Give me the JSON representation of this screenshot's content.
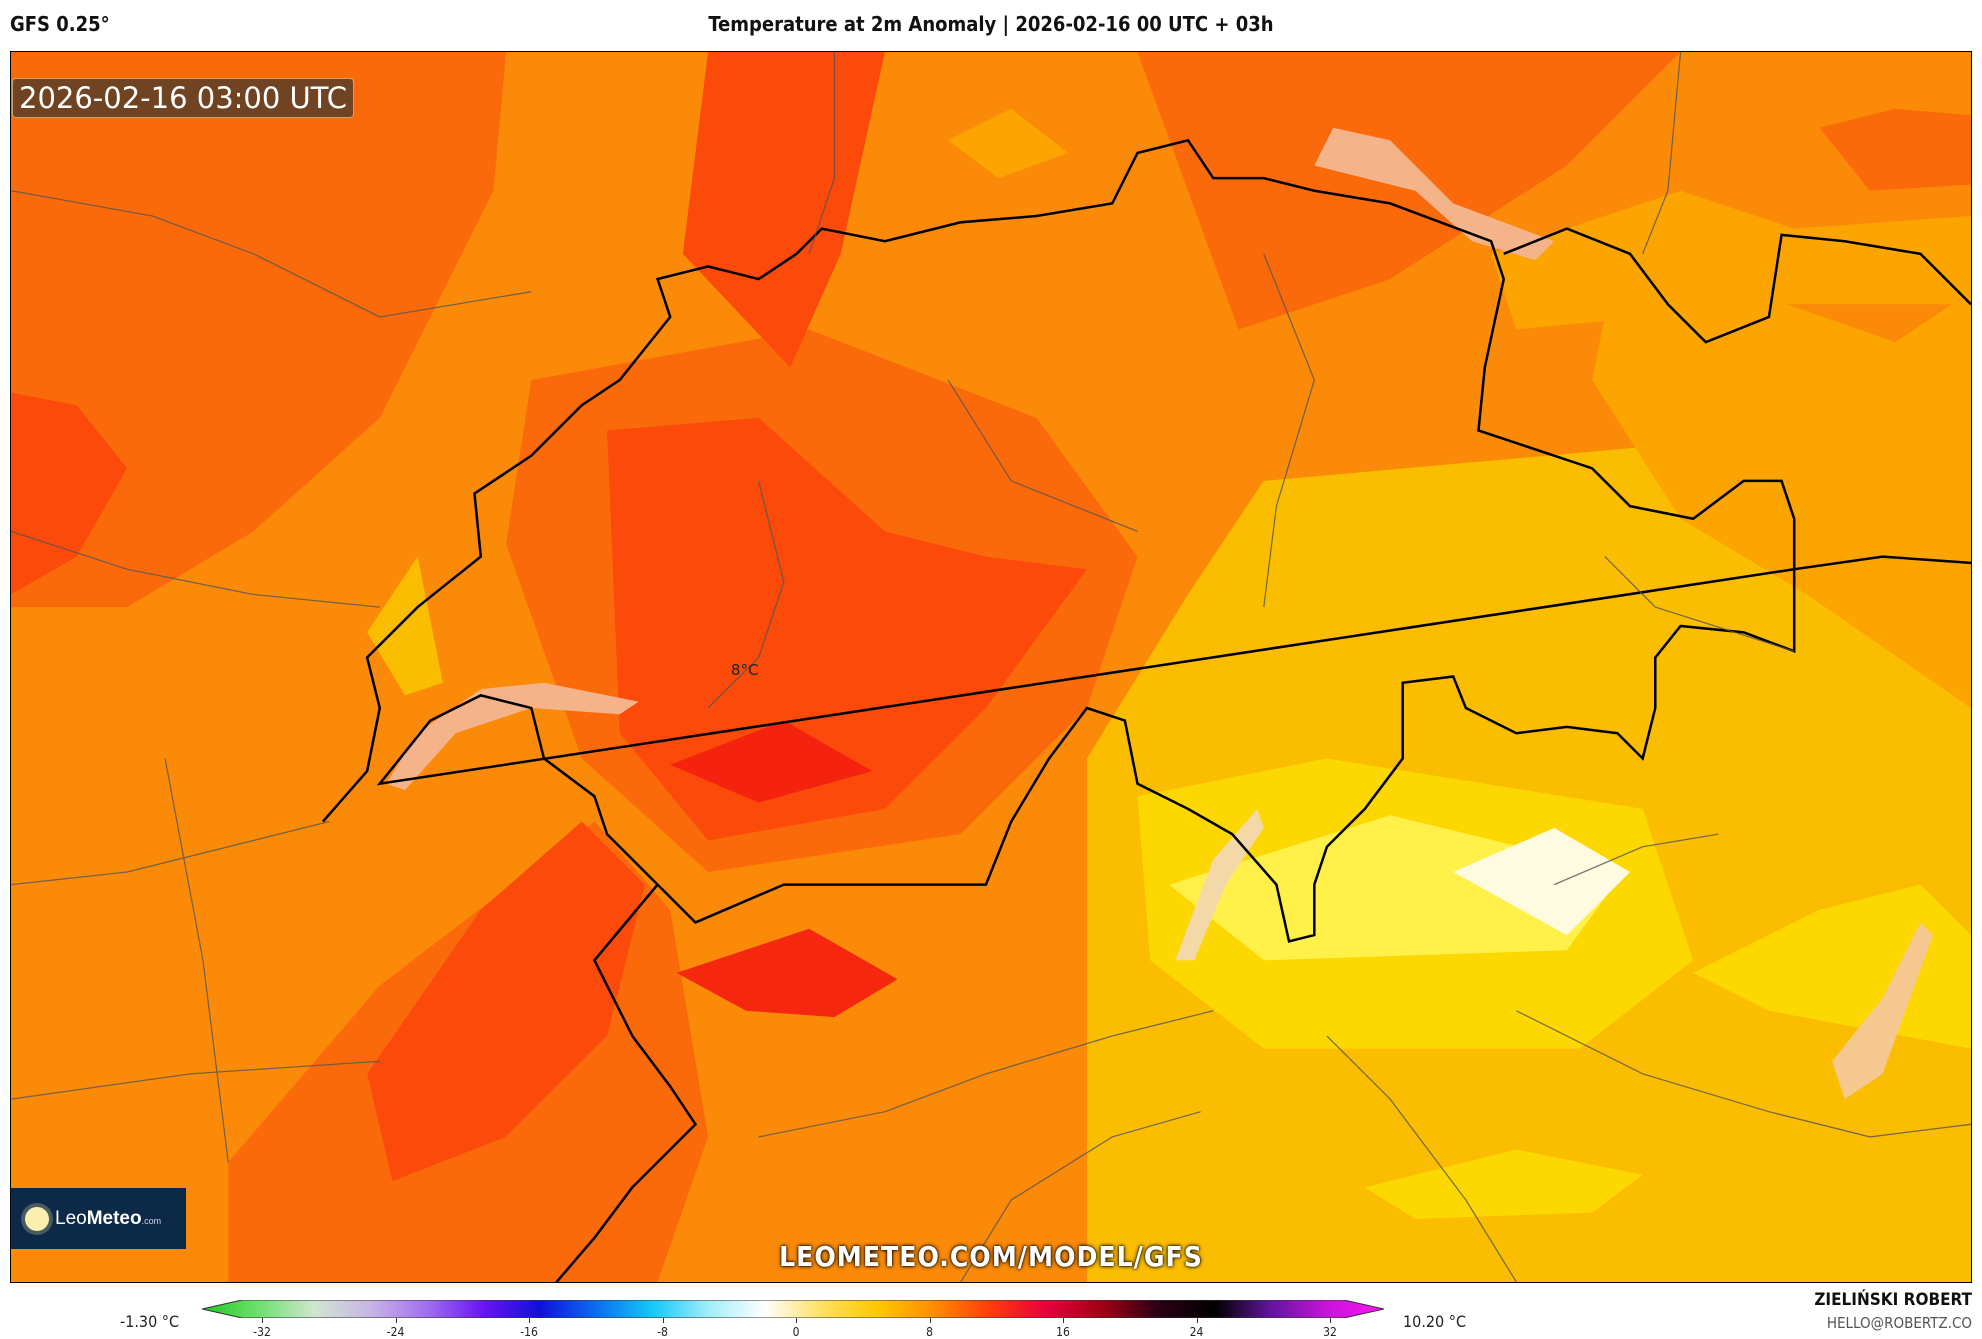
{
  "header": {
    "model": "GFS 0.25°",
    "title": "Temperature at 2m Anomaly | 2026-02-16 00 UTC + 03h"
  },
  "map": {
    "valid_time": "2026-02-16 03:00 UTC",
    "contour_label": "8°C",
    "watermark": "LEOMETEO.COM/MODEL/GFS",
    "logo": {
      "name": "Leo",
      "bold": "Meteo",
      "suffix": ".com"
    },
    "colors": {
      "orange": "#fb8a08",
      "dark_orange": "#fb6a0a",
      "red_orange": "#fb4a0a",
      "red": "#f5220f",
      "light_orange": "#fca400",
      "amber": "#fbbd00",
      "yellow": "#fdd800",
      "light_yellow": "#fff04a",
      "white": "#fffbe0",
      "lake": "#f5b38a"
    }
  },
  "legend": {
    "min_value": "-1.30 °C",
    "max_value": "10.20 °C",
    "ticks": [
      "-32",
      "-24",
      "-16",
      "-8",
      "0",
      "8",
      "16",
      "24",
      "32"
    ],
    "gradient": [
      "#1fc81f",
      "#6ee06e",
      "#cfe6cf",
      "#c8b4e6",
      "#a06ef0",
      "#6a14f0",
      "#1010d8",
      "#0a6ef0",
      "#14c8f8",
      "#a0eefa",
      "#ffffff",
      "#ffe060",
      "#ffc800",
      "#ff8c00",
      "#ff3c0a",
      "#e6003c",
      "#a00014",
      "#280014",
      "#000000",
      "#6414a0",
      "#c814dc",
      "#ff14f0"
    ]
  },
  "credit": {
    "author": "ZIELIŃSKI ROBERT",
    "email": "HELLO@ROBERTZ.CO"
  }
}
